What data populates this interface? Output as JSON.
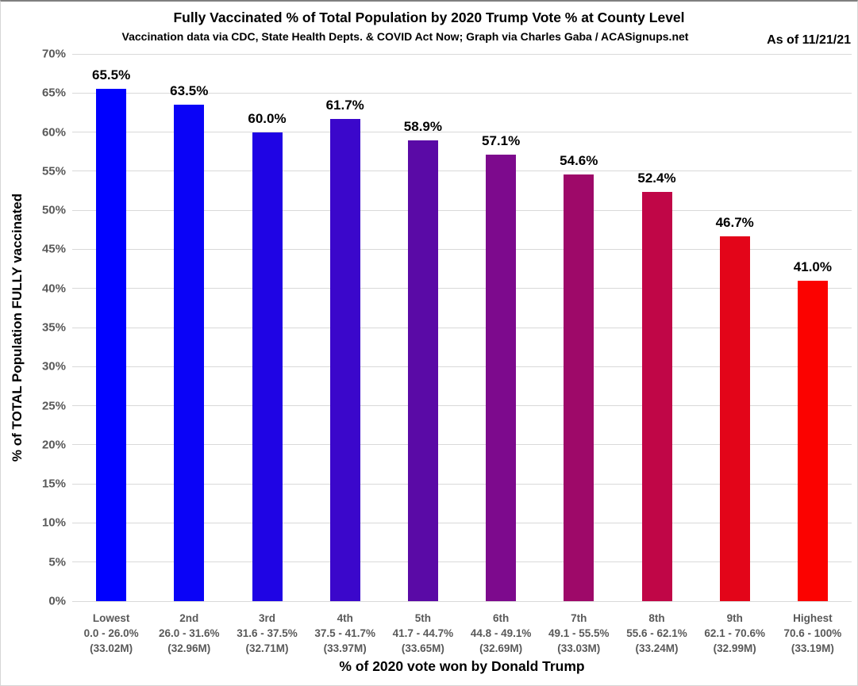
{
  "chart_data": {
    "type": "bar",
    "title": "Fully Vaccinated % of Total Population by 2020 Trump Vote % at County Level",
    "subtitle": "Vaccination data via CDC, State Health Depts. & COVID Act Now; Graph via Charles Gaba / ACASignups.net",
    "as_of": "As of 11/21/21",
    "xlabel": "% of 2020 vote won by Donald Trump",
    "ylabel": "% of TOTAL Population FULLY vaccinated",
    "ylim": [
      0,
      70
    ],
    "ytick_step": 5,
    "ytick_suffix": "%",
    "grid": true,
    "legend_position": "none",
    "categories": [
      {
        "tier": "Lowest",
        "range": "0.0 - 26.0%",
        "population": "(33.02M)"
      },
      {
        "tier": "2nd",
        "range": "26.0 - 31.6%",
        "population": "(32.96M)"
      },
      {
        "tier": "3rd",
        "range": "31.6 - 37.5%",
        "population": "(32.71M)"
      },
      {
        "tier": "4th",
        "range": "37.5 - 41.7%",
        "population": "(33.97M)"
      },
      {
        "tier": "5th",
        "range": "41.7 - 44.7%",
        "population": "(33.65M)"
      },
      {
        "tier": "6th",
        "range": "44.8 - 49.1%",
        "population": "(32.69M)"
      },
      {
        "tier": "7th",
        "range": "49.1 - 55.5%",
        "population": "(33.03M)"
      },
      {
        "tier": "8th",
        "range": "55.6 - 62.1%",
        "population": "(33.24M)"
      },
      {
        "tier": "9th",
        "range": "62.1 - 70.6%",
        "population": "(32.99M)"
      },
      {
        "tier": "Highest",
        "range": "70.6 - 100%",
        "population": "(33.19M)"
      }
    ],
    "values": [
      65.5,
      63.5,
      60.0,
      61.7,
      58.9,
      57.1,
      54.6,
      52.4,
      46.7,
      41.0
    ],
    "value_labels": [
      "65.5%",
      "63.5%",
      "60.0%",
      "61.7%",
      "58.9%",
      "57.1%",
      "54.6%",
      "52.4%",
      "46.7%",
      "41.0%"
    ],
    "bar_colors": [
      "#0000FE",
      "#0A03F7",
      "#1F04E4",
      "#3B07CB",
      "#5A0AA6",
      "#7D0A8D",
      "#9E0969",
      "#C00647",
      "#E30519",
      "#FB0200"
    ],
    "grid_color": "#D9D9D9",
    "axis_text_color": "#595959"
  }
}
